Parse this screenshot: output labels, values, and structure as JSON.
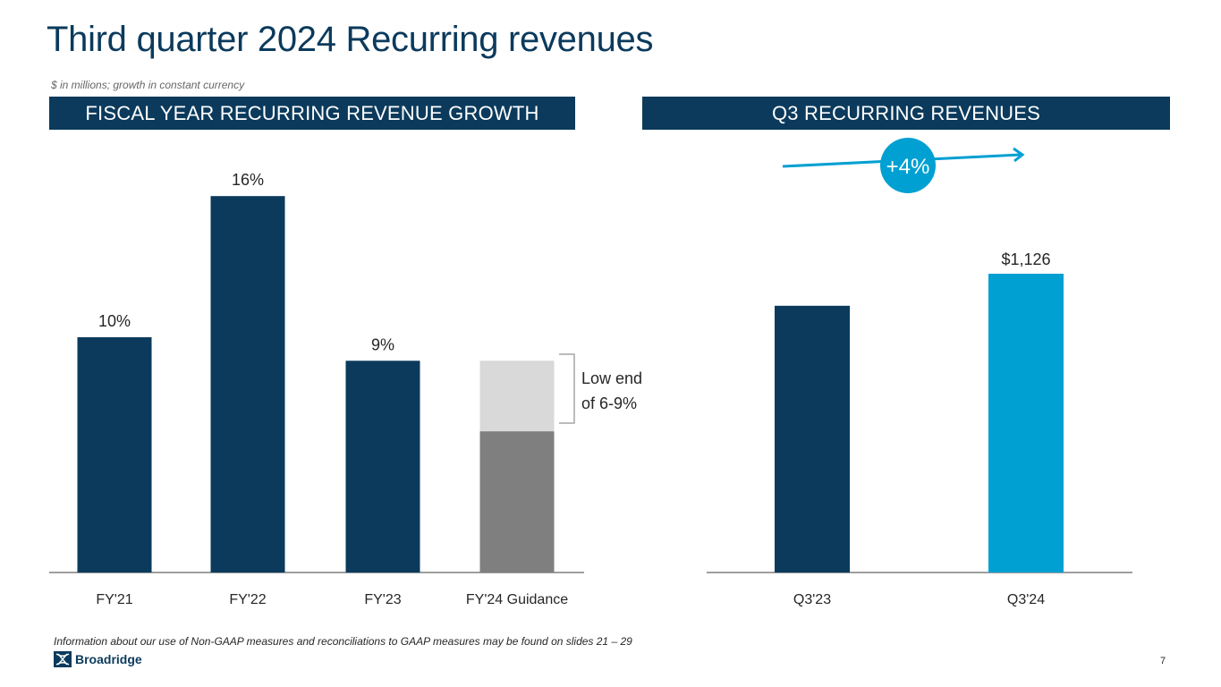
{
  "header": {
    "title": "Third quarter 2024 Recurring revenues",
    "subtitle": "$ in millions; growth in constant currency"
  },
  "colors": {
    "navy": "#0b3a5c",
    "light_blue": "#00a0d2",
    "guidance_dark": "#7f7f7f",
    "guidance_light": "#d9d9d9"
  },
  "chart_data": [
    {
      "type": "bar",
      "title": "FISCAL YEAR RECURRING REVENUE GROWTH",
      "categories": [
        "FY'21",
        "FY'22",
        "FY'23",
        "FY'24 Guidance"
      ],
      "values": [
        10,
        16,
        9,
        6
      ],
      "labels": [
        "10%",
        "16%",
        "9%",
        ""
      ],
      "guidance_range": {
        "category": "FY'24 Guidance",
        "low": 6,
        "high": 9
      },
      "annotation": {
        "line1": "Low end",
        "line2": "of 6-9%"
      },
      "xlabel": "",
      "ylabel": "",
      "ylim": [
        0,
        17
      ],
      "unit": "%",
      "grid": false
    },
    {
      "type": "bar",
      "title": "Q3 RECURRING REVENUES",
      "categories": [
        "Q3'23",
        "Q3'24"
      ],
      "values": [
        1083,
        1126
      ],
      "labels": [
        "",
        "$1,126"
      ],
      "growth_label": "+4%",
      "xlabel": "",
      "ylabel": "",
      "unit": "$M",
      "grid": false
    }
  ],
  "footer": {
    "note": "Information about our use of Non-GAAP measures and reconciliations to GAAP measures may be found on slides 21 – 29",
    "logo_text": "Broadridge",
    "page_number": "7"
  }
}
